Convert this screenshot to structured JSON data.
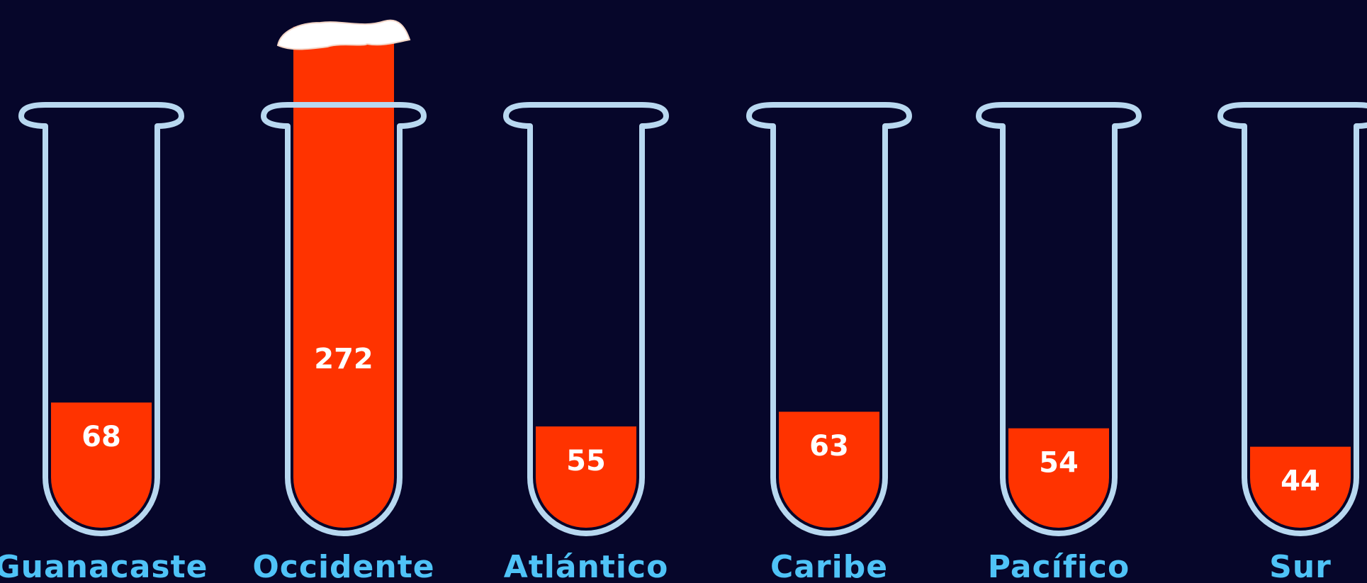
{
  "chart_data": {
    "type": "bar",
    "categories": [
      "Guanacaste",
      "Occidente",
      "Atlántico",
      "Caribe",
      "Pacífico",
      "Sur"
    ],
    "values": [
      68,
      272,
      55,
      63,
      54,
      44
    ],
    "value_labels": [
      "68",
      "272",
      "55",
      "63",
      "54",
      "44"
    ],
    "title": "",
    "xlabel": "",
    "ylabel": ""
  },
  "colors": {
    "background": "#06062a",
    "liquid": "#ff3300",
    "tube_outline": "#b8d8f0",
    "label_color": "#4fc3f7",
    "value_text": "#ffffff",
    "overflow_foam": "#ffffff"
  },
  "icons": {
    "bar_shape": "test-tube-icon",
    "overflow": "foam-overflow-icon"
  }
}
